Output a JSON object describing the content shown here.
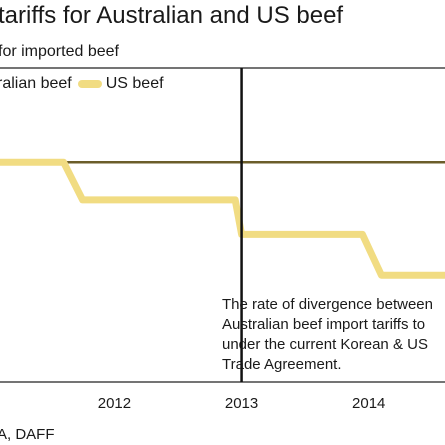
{
  "chart_data": {
    "type": "line",
    "title": "tariffs for Australian and US beef",
    "subtitle": "for imported beef",
    "legend": [
      {
        "name": "ralian beef",
        "color": "#6b5d2a"
      },
      {
        "name": "US beef",
        "color": "#f1dc82"
      }
    ],
    "x_ticks": [
      "2012",
      "2013",
      "2014"
    ],
    "xlim": [
      2011.1,
      2014.6
    ],
    "ylim": [
      0,
      100
    ],
    "series": [
      {
        "name": "ralian beef",
        "color": "#6b5d2a",
        "x": [
          2011.1,
          2014.6
        ],
        "y": [
          70,
          70
        ]
      },
      {
        "name": "US beef",
        "color": "#f1dc82",
        "x": [
          2011.1,
          2011.6,
          2011.75,
          2012.95,
          2013.0,
          2013.95,
          2014.1,
          2014.6
        ],
        "y": [
          70,
          70,
          58,
          58,
          47,
          47,
          34,
          34
        ]
      }
    ],
    "vertical_marker_x": 2013.0,
    "annotation": "The rate of divergence between\nAustralian beef import tariffs to\nunder the current Korean & US\nTrade Agreement.",
    "source": "A, DAFF"
  }
}
